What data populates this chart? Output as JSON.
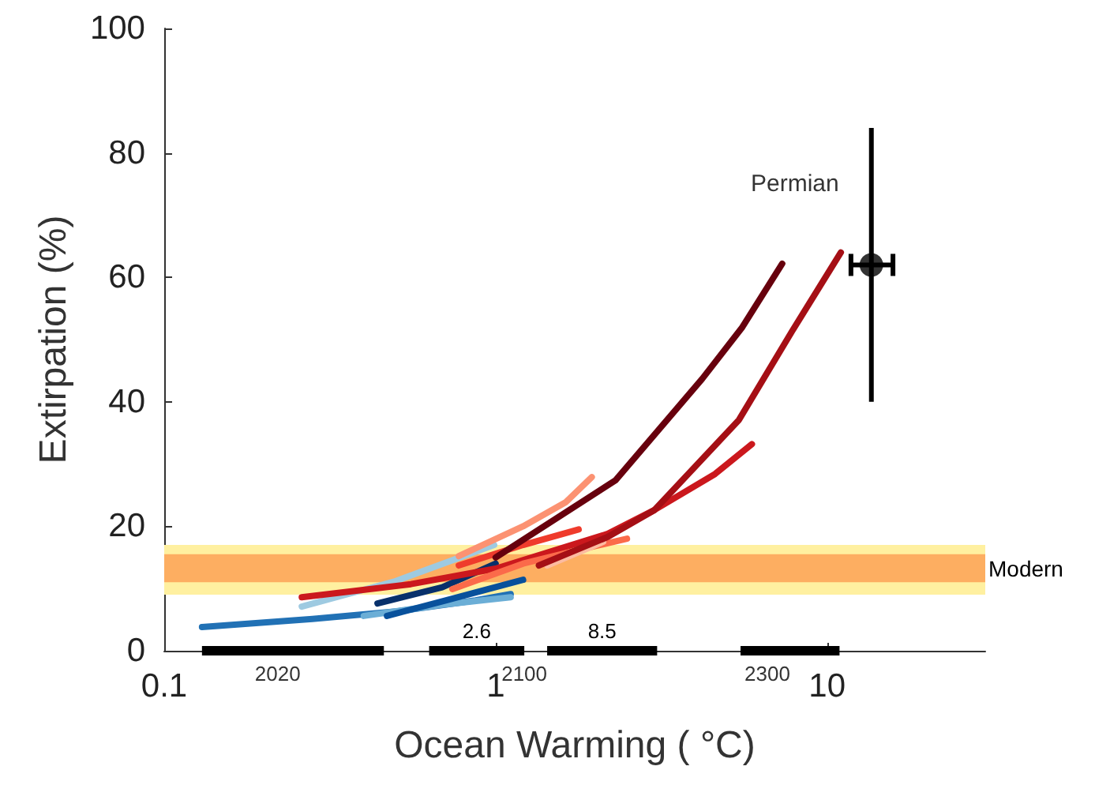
{
  "chart_data": {
    "type": "line",
    "xlabel": "Ocean Warming ( °C)",
    "ylabel": "Extirpation (%)",
    "log": "x",
    "xlim": [
      0.1,
      30
    ],
    "xticks": [
      0.1,
      1,
      10
    ],
    "ylim": [
      0,
      100
    ],
    "yticks": [
      0,
      20,
      40,
      60,
      80,
      100
    ],
    "grid": false,
    "legend": false,
    "marker": "none",
    "line_style": "solid",
    "bands": [
      {
        "axis": "y",
        "from": 9,
        "to": 17,
        "color": "#fff0a0"
      },
      {
        "axis": "y",
        "from": 11,
        "to": 15.5,
        "color": "#fdae61",
        "label": "Modern"
      }
    ],
    "series": [
      {
        "color": "#2171b5",
        "x": [
          0.13,
          0.28,
          0.5,
          0.87,
          1.11
        ],
        "values": [
          3.8,
          5.1,
          6.3,
          8.1,
          9.1
        ]
      },
      {
        "color": "#6baed6",
        "x": [
          0.4,
          0.69,
          1.11
        ],
        "values": [
          5.6,
          7.4,
          8.6
        ]
      },
      {
        "color": "#9ecae1",
        "x": [
          0.26,
          0.5,
          0.99
        ],
        "values": [
          7.1,
          11.2,
          17
        ]
      },
      {
        "color": "#08519c",
        "x": [
          0.47,
          0.77,
          1.21
        ],
        "values": [
          5.6,
          8.6,
          11.4
        ]
      },
      {
        "color": "#08306b",
        "x": [
          0.44,
          0.69,
          1.0
        ],
        "values": [
          7.6,
          10.2,
          14
        ]
      },
      {
        "color": "#cb181d",
        "x": [
          0.26,
          0.555,
          1.0,
          2.18,
          3.01,
          4.59,
          5.93
        ],
        "values": [
          8.6,
          10.7,
          13.2,
          18.8,
          22.6,
          28.4,
          33.2
        ]
      },
      {
        "color": "#fb6a4a",
        "x": [
          0.74,
          1.21,
          1.88,
          2.49
        ],
        "values": [
          9.9,
          14,
          16.5,
          18
        ]
      },
      {
        "color": "#ef3b2c",
        "x": [
          0.774,
          1.21,
          1.78
        ],
        "values": [
          13.7,
          17,
          19.5
        ]
      },
      {
        "color": "#fc9272",
        "x": [
          0.774,
          1.21,
          1.63,
          1.95
        ],
        "values": [
          15.2,
          20,
          23.9,
          27.9
        ]
      },
      {
        "color": "#fcbba1",
        "x": [
          1.43,
          2.11
        ],
        "values": [
          13.7,
          17.5
        ]
      },
      {
        "color": "#a50f15",
        "x": [
          1.35,
          2.18,
          3.01,
          5.42,
          7.83,
          11.0
        ],
        "values": [
          13.7,
          18.3,
          22.6,
          37.1,
          51.3,
          64
        ]
      },
      {
        "color": "#67000d",
        "x": [
          1.0,
          2.3,
          4.2,
          5.55,
          7.32
        ],
        "values": [
          15,
          27.4,
          43.7,
          52,
          62.2
        ]
      },
      {
        "color": "#000000",
        "x": [
          0.13,
          0.46
        ],
        "values": [
          0,
          0
        ]
      },
      {
        "color": "#000000",
        "name": "2.6",
        "x": [
          0.63,
          1.22
        ],
        "values": [
          0,
          0
        ]
      },
      {
        "color": "#000000",
        "name": "8.5",
        "x": [
          1.43,
          3.07
        ],
        "values": [
          0,
          0
        ]
      },
      {
        "color": "#000000",
        "x": [
          5.48,
          10.9
        ],
        "values": [
          0,
          0
        ]
      },
      {
        "type": "scatter",
        "name": "Permian",
        "marker": "circle",
        "color": "#000000",
        "x": [
          13.6
        ],
        "values": [
          62
        ],
        "errors": [
          [
            40,
            84
          ]
        ],
        "xerrors": [
          [
            11.8,
            15.8
          ]
        ]
      }
    ],
    "annotations": [
      {
        "text": "2020",
        "x": 0.22,
        "y": 0
      },
      {
        "text": "2100",
        "x": 1.22,
        "y": 0
      },
      {
        "text": "2300",
        "x": 6.6,
        "y": 0
      }
    ]
  }
}
